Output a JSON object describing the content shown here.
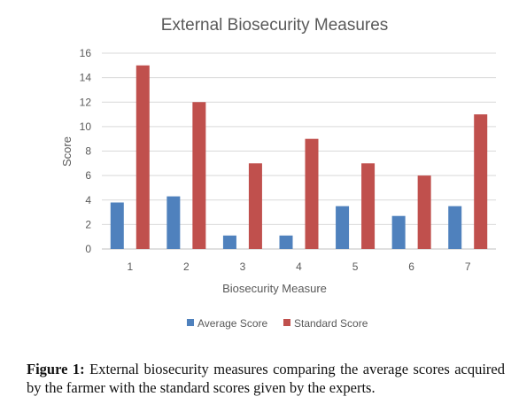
{
  "chart_data": {
    "type": "bar",
    "title": "External Biosecurity Measures",
    "xlabel": "Biosecurity Measure",
    "ylabel": "Score",
    "categories": [
      "1",
      "2",
      "3",
      "4",
      "5",
      "6",
      "7"
    ],
    "ylim": [
      0,
      16
    ],
    "yticks": [
      0,
      2,
      4,
      6,
      8,
      10,
      12,
      14,
      16
    ],
    "grid": true,
    "legend_position": "bottom",
    "series": [
      {
        "name": "Average Score",
        "color": "#4f81bd",
        "values": [
          3.8,
          4.3,
          1.1,
          1.1,
          3.5,
          2.7,
          3.5
        ]
      },
      {
        "name": "Standard Score",
        "color": "#c0504d",
        "values": [
          15,
          12,
          7,
          9,
          7,
          6,
          11
        ]
      }
    ]
  },
  "caption": {
    "label": "Figure 1:",
    "text": "External biosecurity measures comparing the average scores acquired by the farmer with the standard scores given by the experts."
  }
}
